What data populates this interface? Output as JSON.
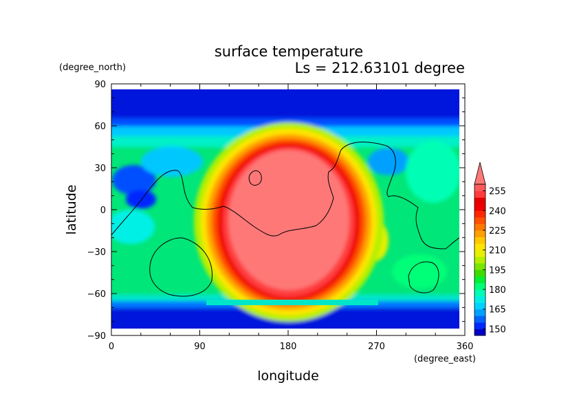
{
  "chart_data": {
    "type": "heatmap",
    "title": "surface temperature",
    "subtitle": "Ls = 212.63101 degree",
    "xlabel": "longitude",
    "ylabel": "latitude",
    "x_unit": "(degree_east)",
    "y_unit": "(degree_north)",
    "xlim": [
      0,
      360
    ],
    "ylim": [
      -90,
      90
    ],
    "x_ticks": [
      "0",
      "90",
      "180",
      "270",
      "360"
    ],
    "y_ticks": [
      "90",
      "60",
      "30",
      "0",
      "−30",
      "−60",
      "−90"
    ],
    "colorbar": {
      "labels": [
        "150",
        "165",
        "180",
        "195",
        "210",
        "225",
        "240",
        "255"
      ],
      "levels": [
        145,
        150,
        155,
        160,
        165,
        170,
        175,
        180,
        185,
        190,
        195,
        200,
        205,
        210,
        215,
        220,
        225,
        230,
        235,
        240,
        245,
        250,
        255,
        260
      ],
      "colors": [
        "#0000c8",
        "#0028ff",
        "#0064ff",
        "#00a0ff",
        "#00d2ff",
        "#00f0e6",
        "#00ffb4",
        "#00ff78",
        "#00f032",
        "#3cdc00",
        "#78e600",
        "#b4f000",
        "#e6f000",
        "#ffe600",
        "#ffc800",
        "#ffa000",
        "#ff7800",
        "#ff5000",
        "#ff2800",
        "#f00000",
        "#e60000",
        "#ff3c3c",
        "#ff5a5a"
      ],
      "extend_color": "#ff7878",
      "min_value": 145,
      "max_value": 260
    },
    "grid": false,
    "coastline": true
  }
}
